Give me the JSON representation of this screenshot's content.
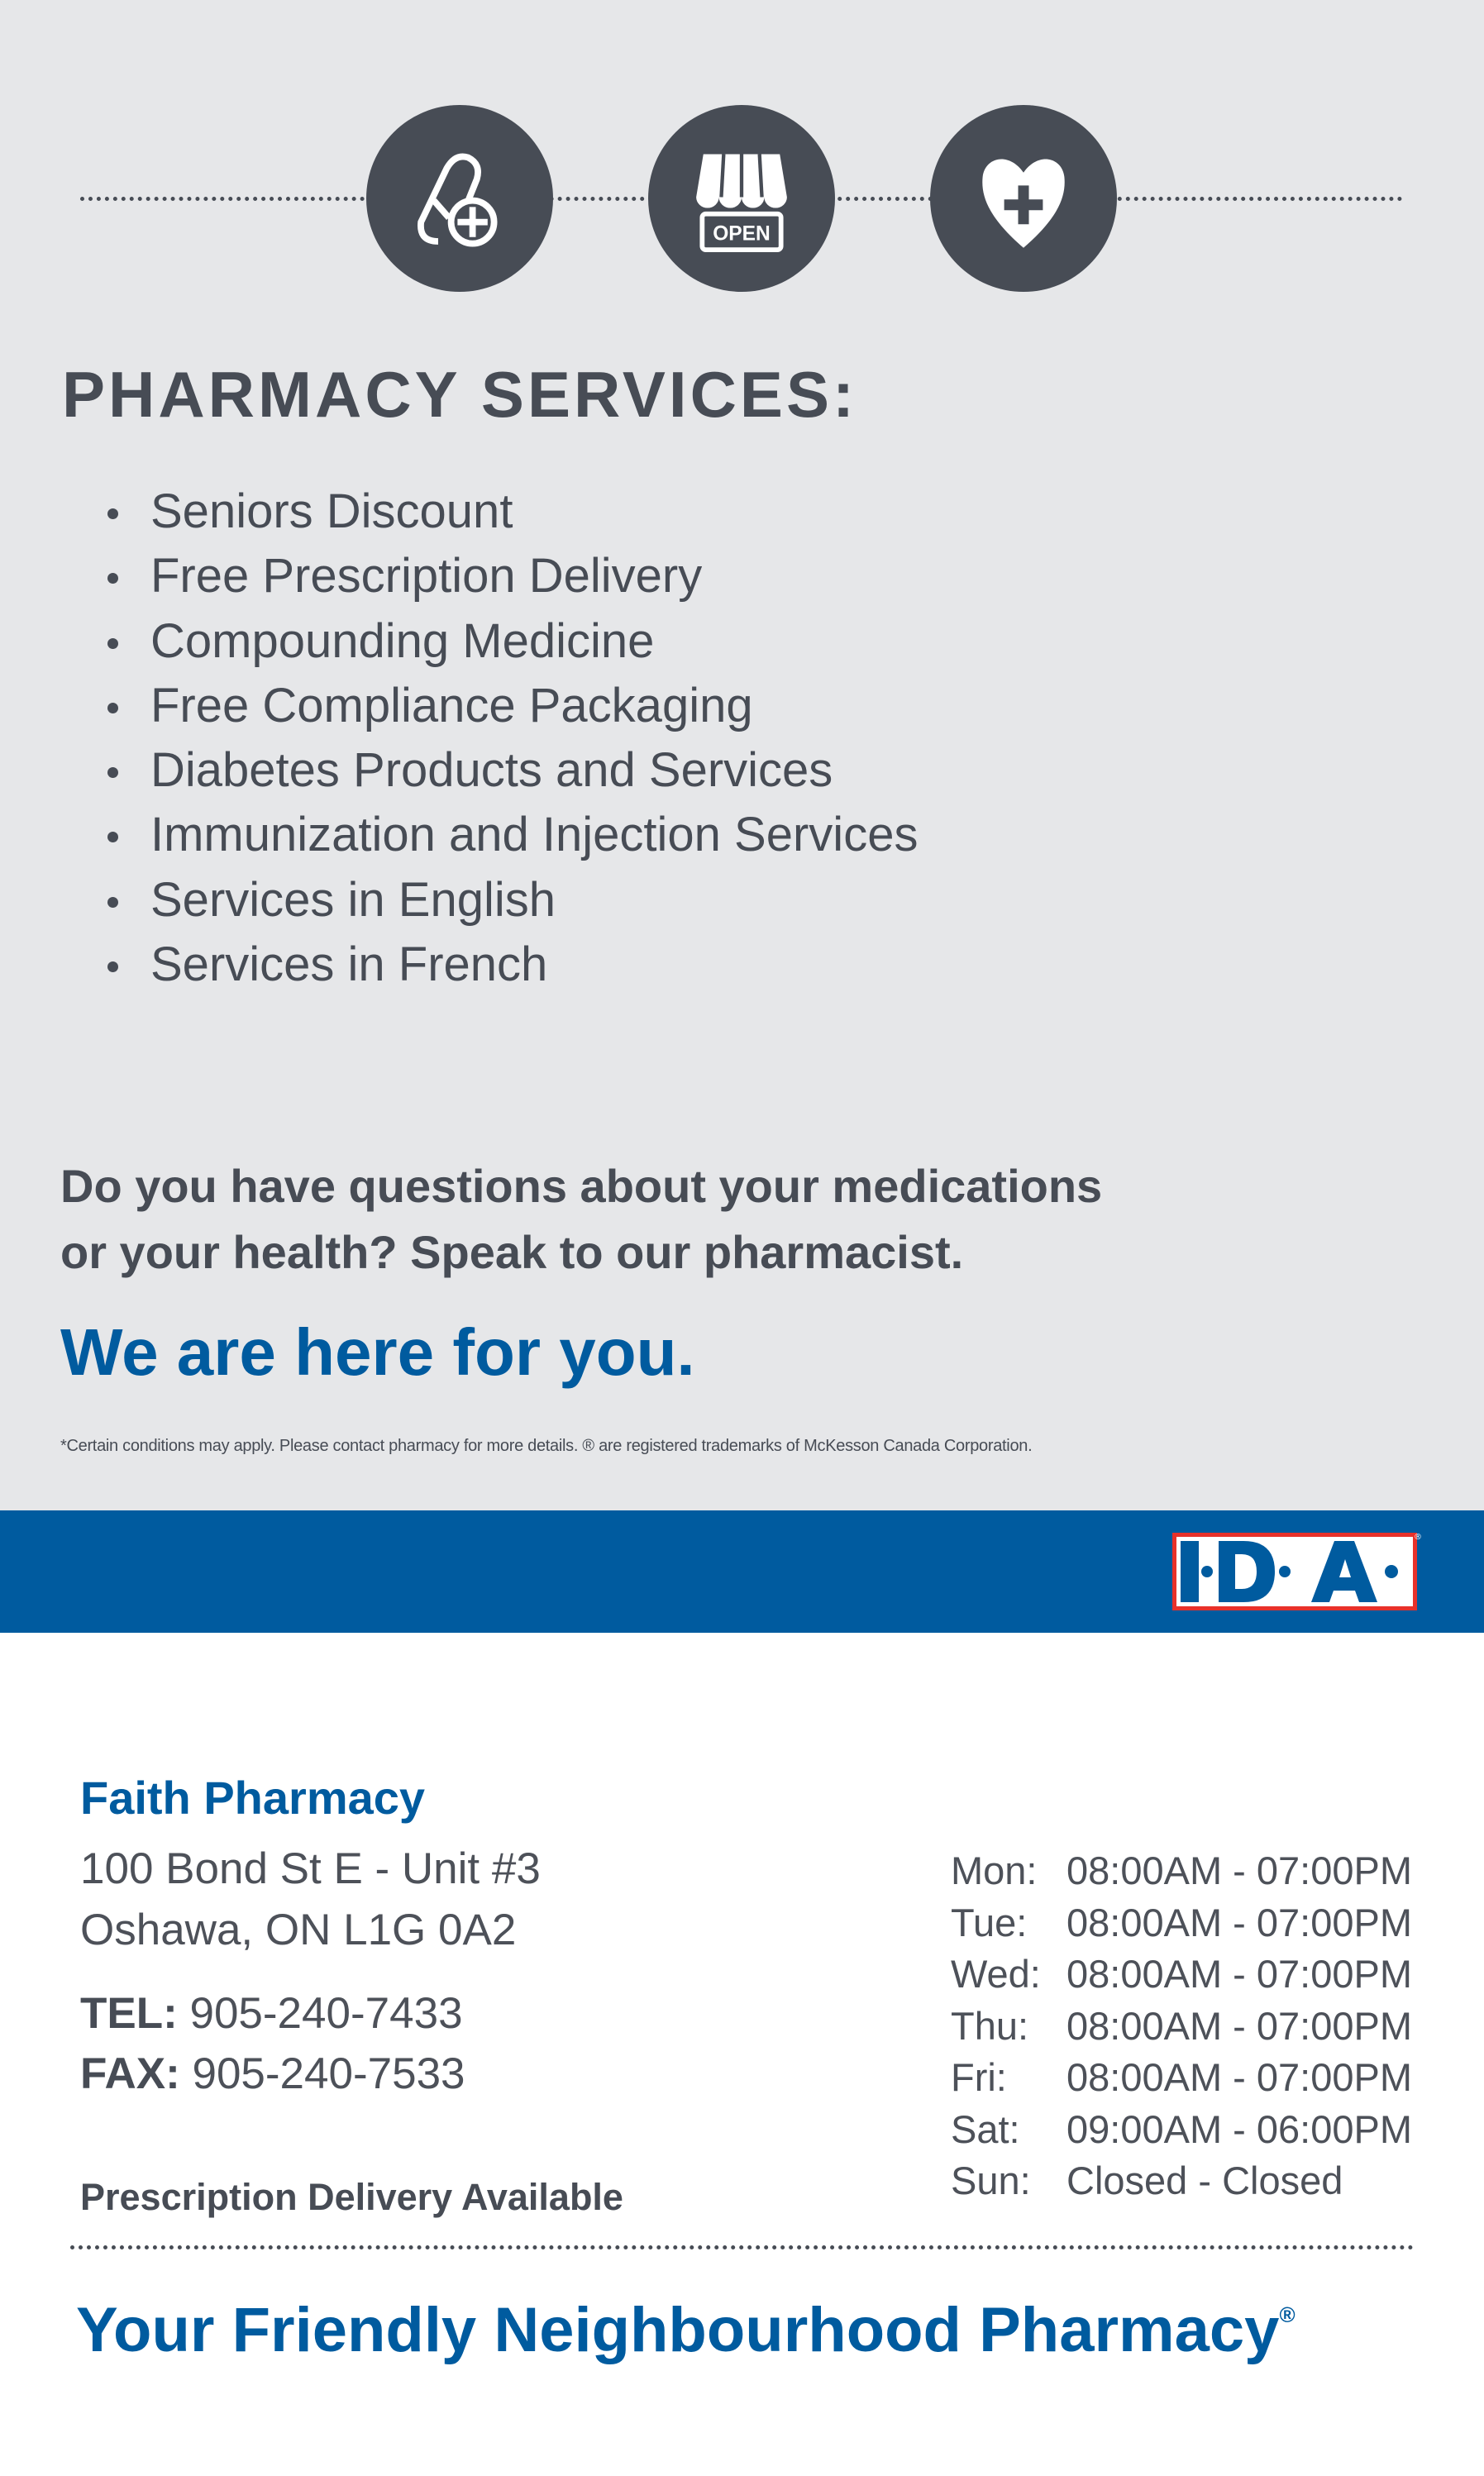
{
  "icons": [
    "pill-plus-icon",
    "open-store-icon",
    "heart-plus-icon"
  ],
  "open_sign": "OPEN",
  "services": {
    "title": "PHARMACY SERVICES:",
    "items": [
      "Seniors Discount",
      "Free Prescription Delivery",
      "Compounding Medicine",
      "Free Compliance Packaging",
      "Diabetes Products and Services",
      "Immunization and Injection Services",
      "Services in English",
      "Services in French"
    ]
  },
  "question": {
    "line1": "Do you have questions about your medications",
    "line2": "or your health? Speak to our pharmacist."
  },
  "tagline": "We are here for you.",
  "fine_print": "*Certain conditions may apply. Please contact pharmacy for more details. ® are registered trademarks of McKesson Canada Corporation.",
  "logo": "I·D·A®",
  "pharmacy": {
    "name": "Faith Pharmacy",
    "address1": "100 Bond St E - Unit #3",
    "address2": "Oshawa, ON L1G 0A2",
    "tel_label": "TEL:",
    "tel": "905-240-7433",
    "fax_label": "FAX:",
    "fax": "905-240-7533",
    "delivery": "Prescription Delivery Available"
  },
  "hours": [
    {
      "day": "Mon:",
      "time": "08:00AM - 07:00PM"
    },
    {
      "day": "Tue:",
      "time": "08:00AM - 07:00PM"
    },
    {
      "day": "Wed:",
      "time": "08:00AM - 07:00PM"
    },
    {
      "day": "Thu:",
      "time": "08:00AM - 07:00PM"
    },
    {
      "day": "Fri:",
      "time": "08:00AM - 07:00PM"
    },
    {
      "day": "Sat:",
      "time": "09:00AM - 06:00PM"
    },
    {
      "day": "Sun:",
      "time": "Closed - Closed"
    }
  ],
  "slogan": "Your Friendly Neighbourhood Pharmacy",
  "slogan_mark": "®",
  "colors": {
    "brand_blue": "#005b9f",
    "dark_gray": "#474c55",
    "background": "#e6e7e9",
    "logo_red": "#e8312a"
  }
}
